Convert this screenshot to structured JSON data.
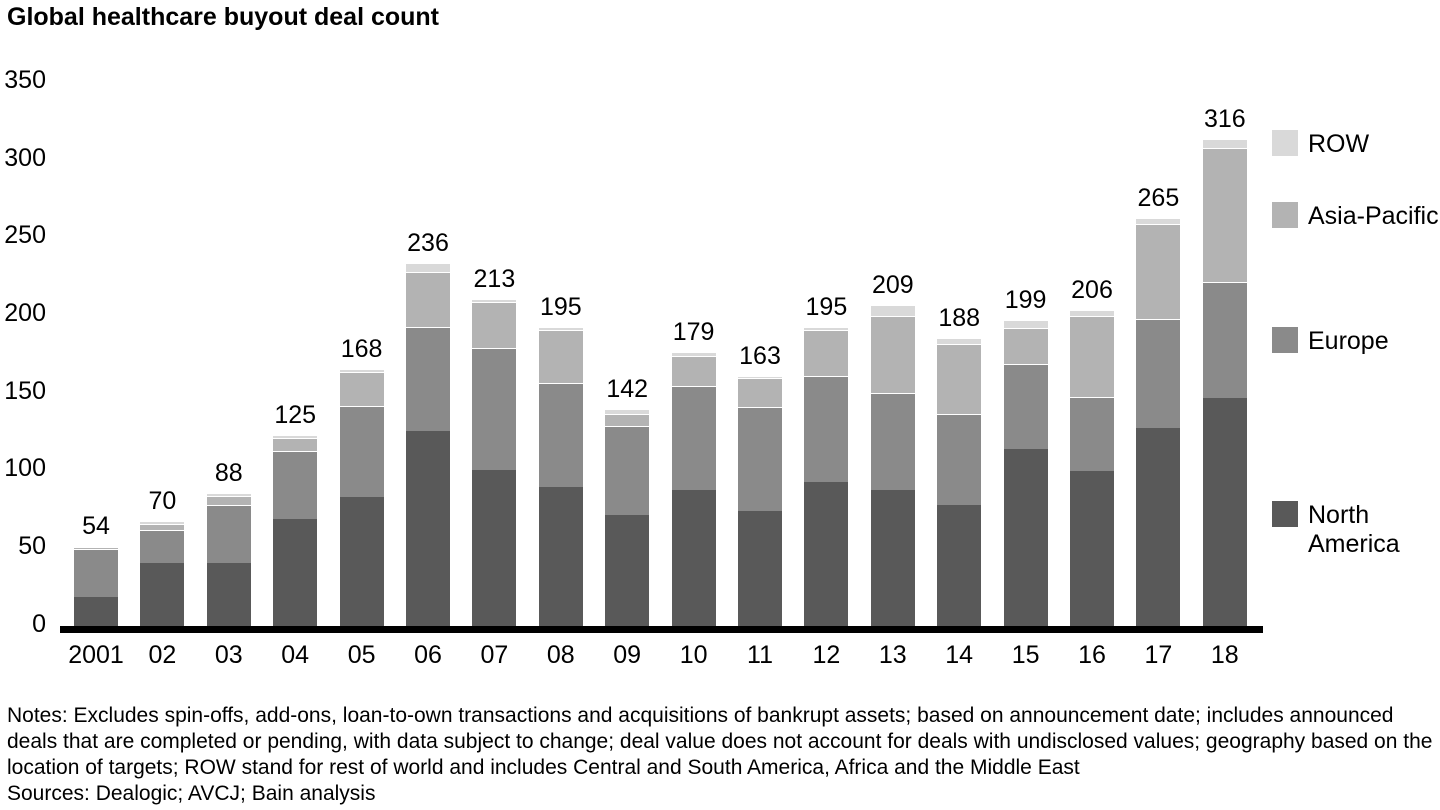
{
  "title": "Global healthcare buyout deal count",
  "chart_data": {
    "type": "bar",
    "stacked": true,
    "title": "Global healthcare buyout deal count",
    "categories": [
      "2001",
      "02",
      "03",
      "04",
      "05",
      "06",
      "07",
      "08",
      "09",
      "10",
      "11",
      "12",
      "13",
      "14",
      "15",
      "16",
      "17",
      "18"
    ],
    "series": [
      {
        "name": "North America",
        "color": "#595959",
        "values": [
          21,
          43,
          43,
          71,
          85,
          128,
          103,
          92,
          74,
          90,
          76,
          95,
          90,
          80,
          116,
          102,
          130,
          149
        ]
      },
      {
        "name": "Europe",
        "color": "#8a8a8a",
        "values": [
          31,
          21,
          37,
          44,
          59,
          67,
          78,
          67,
          57,
          67,
          67,
          68,
          62,
          59,
          55,
          48,
          70,
          75
        ]
      },
      {
        "name": "Asia-Pacific",
        "color": "#b3b3b3",
        "values": [
          1,
          4,
          6,
          8,
          22,
          35,
          30,
          34,
          8,
          19,
          19,
          30,
          50,
          45,
          23,
          52,
          61,
          86
        ]
      },
      {
        "name": "ROW",
        "color": "#d9d9d9",
        "values": [
          1,
          2,
          2,
          2,
          2,
          6,
          2,
          2,
          3,
          3,
          1,
          2,
          7,
          4,
          5,
          4,
          4,
          6
        ]
      }
    ],
    "totals": [
      54,
      70,
      88,
      125,
      168,
      236,
      213,
      195,
      142,
      179,
      163,
      195,
      209,
      188,
      199,
      206,
      265,
      316
    ],
    "y_ticks": [
      0,
      50,
      100,
      150,
      200,
      250,
      300,
      350
    ],
    "ylim": [
      0,
      350
    ],
    "xlabel": "",
    "ylabel": "",
    "grid": false,
    "legend_position": "right",
    "legend_order": [
      "ROW",
      "Asia-Pacific",
      "Europe",
      "North America"
    ],
    "axis_color": "#000000",
    "separator_color": "#ffffff"
  },
  "legend": {
    "row_label": "ROW",
    "asia_pacific_label": "Asia-Pacific",
    "europe_label": "Europe",
    "north_america_label": "North America"
  },
  "notes": "Notes: Excludes spin-offs, add-ons, loan-to-own transactions and acquisitions of bankrupt assets; based on announcement date; includes announced deals that are completed or pending, with data subject to change; deal value does not account for deals with undisclosed values; geography based on the location of targets; ROW stand for rest of world and includes Central and South America, Africa and the Middle East",
  "sources": "Sources: Dealogic; AVCJ; Bain analysis"
}
